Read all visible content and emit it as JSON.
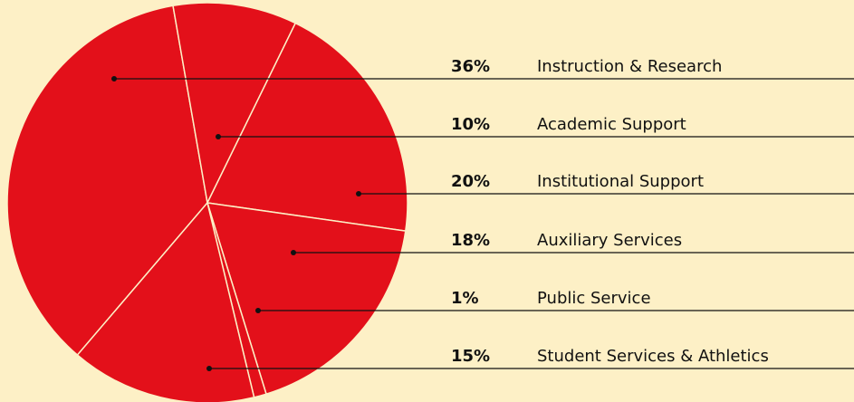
{
  "chart_data": {
    "type": "pie",
    "categories": [
      "Instruction & Research",
      "Academic Support",
      "Institutional Support",
      "Auxiliary Services",
      "Public Service",
      "Student Services & Athletics"
    ],
    "values": [
      36,
      10,
      20,
      18,
      1,
      15
    ],
    "value_labels": [
      "36%",
      "10%",
      "20%",
      "18%",
      "1%",
      "15%"
    ],
    "color": "#e3101a"
  }
}
